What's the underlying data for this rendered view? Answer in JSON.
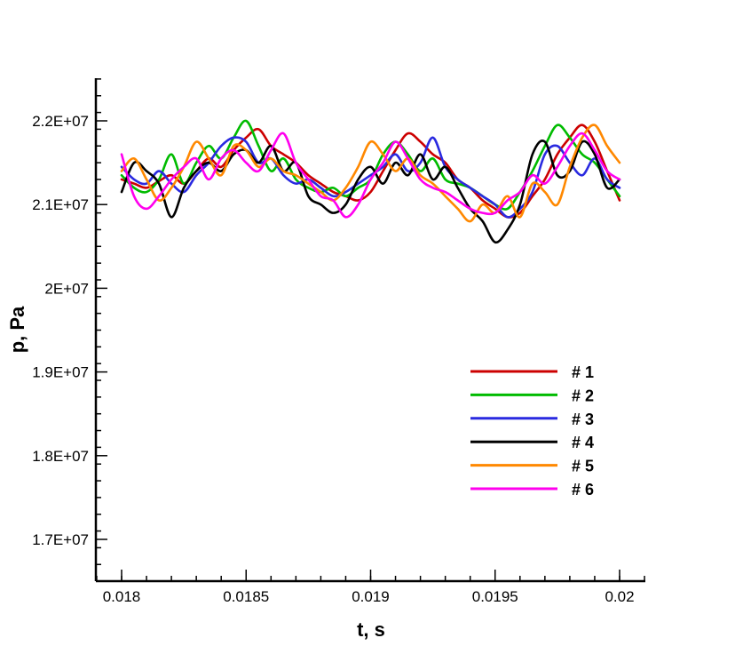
{
  "chart_data": {
    "type": "line",
    "title": "",
    "xlabel": "t, s",
    "ylabel": "p, Pa",
    "xlim": [
      0.0179,
      0.0201
    ],
    "ylim": [
      16500000,
      22500000
    ],
    "x_ticks": [
      0.018,
      0.0185,
      0.019,
      0.0195,
      0.02
    ],
    "x_tick_labels": [
      "0.018",
      "0.0185",
      "0.019",
      "0.0195",
      "0.02"
    ],
    "y_ticks": [
      17000000,
      18000000,
      19000000,
      20000000,
      21000000,
      22000000
    ],
    "y_tick_labels": [
      "1.7E+07",
      "1.8E+07",
      "1.9E+07",
      "2E+07",
      "2.1E+07",
      "2.2E+07"
    ],
    "y_minor_step": 200000,
    "x_minor_step": 0.0001,
    "grid": false,
    "legend_position": "right",
    "series": [
      {
        "name": "# 1",
        "color": "#cc0000",
        "x": [
          0.018,
          0.01805,
          0.0181,
          0.01815,
          0.0182,
          0.01825,
          0.0183,
          0.01835,
          0.0184,
          0.01845,
          0.0185,
          0.01855,
          0.0186,
          0.01865,
          0.0187,
          0.01875,
          0.0188,
          0.01885,
          0.0189,
          0.01895,
          0.019,
          0.01905,
          0.0191,
          0.01915,
          0.0192,
          0.01925,
          0.0193,
          0.01935,
          0.0194,
          0.01945,
          0.0195,
          0.01955,
          0.0196,
          0.01965,
          0.0197,
          0.01975,
          0.0198,
          0.01985,
          0.0199,
          0.01995,
          0.02
        ],
        "values": [
          21300000,
          21250000,
          21200000,
          21280000,
          21350000,
          21250000,
          21400000,
          21550000,
          21450000,
          21650000,
          21800000,
          21900000,
          21700000,
          21600000,
          21500000,
          21350000,
          21250000,
          21150000,
          21100000,
          21050000,
          21150000,
          21400000,
          21650000,
          21850000,
          21750000,
          21600000,
          21500000,
          21300000,
          21200000,
          21050000,
          20950000,
          20850000,
          20900000,
          21100000,
          21300000,
          21600000,
          21800000,
          21950000,
          21750000,
          21400000,
          21050000
        ]
      },
      {
        "name": "# 2",
        "color": "#00bb00",
        "x": [
          0.018,
          0.01805,
          0.0181,
          0.01815,
          0.0182,
          0.01825,
          0.0183,
          0.01835,
          0.0184,
          0.01845,
          0.0185,
          0.01855,
          0.0186,
          0.01865,
          0.0187,
          0.01875,
          0.0188,
          0.01885,
          0.0189,
          0.01895,
          0.019,
          0.01905,
          0.0191,
          0.01915,
          0.0192,
          0.01925,
          0.0193,
          0.01935,
          0.0194,
          0.01945,
          0.0195,
          0.01955,
          0.0196,
          0.01965,
          0.0197,
          0.01975,
          0.0198,
          0.01985,
          0.0199,
          0.01995,
          0.02
        ],
        "values": [
          21350000,
          21200000,
          21150000,
          21300000,
          21600000,
          21250000,
          21500000,
          21700000,
          21550000,
          21800000,
          22000000,
          21700000,
          21400000,
          21550000,
          21300000,
          21200000,
          21150000,
          21200000,
          21100000,
          21200000,
          21300000,
          21600000,
          21750000,
          21600000,
          21400000,
          21550000,
          21300000,
          21250000,
          21200000,
          21100000,
          21000000,
          20950000,
          21150000,
          21400000,
          21700000,
          21950000,
          21800000,
          21600000,
          21500000,
          21300000,
          21100000
        ]
      },
      {
        "name": "# 3",
        "color": "#2a2ae0",
        "x": [
          0.018,
          0.01805,
          0.0181,
          0.01815,
          0.0182,
          0.01825,
          0.0183,
          0.01835,
          0.0184,
          0.01845,
          0.0185,
          0.01855,
          0.0186,
          0.01865,
          0.0187,
          0.01875,
          0.0188,
          0.01885,
          0.0189,
          0.01895,
          0.019,
          0.01905,
          0.0191,
          0.01915,
          0.0192,
          0.01925,
          0.0193,
          0.01935,
          0.0194,
          0.01945,
          0.0195,
          0.01955,
          0.0196,
          0.01965,
          0.0197,
          0.01975,
          0.0198,
          0.01985,
          0.0199,
          0.01995,
          0.02
        ],
        "values": [
          21450000,
          21300000,
          21250000,
          21400000,
          21250000,
          21150000,
          21350000,
          21500000,
          21700000,
          21800000,
          21750000,
          21500000,
          21550000,
          21350000,
          21250000,
          21300000,
          21200000,
          21100000,
          21150000,
          21250000,
          21350000,
          21450000,
          21600000,
          21400000,
          21500000,
          21800000,
          21450000,
          21300000,
          21200000,
          21100000,
          21000000,
          20850000,
          20950000,
          21150000,
          21600000,
          21700000,
          21500000,
          21350000,
          21550000,
          21300000,
          21200000
        ]
      },
      {
        "name": "# 4",
        "color": "#000000",
        "x": [
          0.018,
          0.01805,
          0.0181,
          0.01815,
          0.0182,
          0.01825,
          0.0183,
          0.01835,
          0.0184,
          0.01845,
          0.0185,
          0.01855,
          0.0186,
          0.01865,
          0.0187,
          0.01875,
          0.0188,
          0.01885,
          0.0189,
          0.01895,
          0.019,
          0.01905,
          0.0191,
          0.01915,
          0.0192,
          0.01925,
          0.0193,
          0.01935,
          0.0194,
          0.01945,
          0.0195,
          0.01955,
          0.0196,
          0.01965,
          0.0197,
          0.01975,
          0.0198,
          0.01985,
          0.0199,
          0.01995,
          0.02
        ],
        "values": [
          21150000,
          21500000,
          21400000,
          21250000,
          20850000,
          21200000,
          21400000,
          21500000,
          21400000,
          21600000,
          21650000,
          21500000,
          21700000,
          21400000,
          21500000,
          21100000,
          21000000,
          20900000,
          21000000,
          21300000,
          21450000,
          21250000,
          21500000,
          21350000,
          21600000,
          21300000,
          21450000,
          21200000,
          20950000,
          20800000,
          20550000,
          20700000,
          21000000,
          21600000,
          21750000,
          21350000,
          21400000,
          21750000,
          21600000,
          21200000,
          21300000
        ]
      },
      {
        "name": "# 5",
        "color": "#ff8800",
        "x": [
          0.018,
          0.01805,
          0.0181,
          0.01815,
          0.0182,
          0.01825,
          0.0183,
          0.01835,
          0.0184,
          0.01845,
          0.0185,
          0.01855,
          0.0186,
          0.01865,
          0.0187,
          0.01875,
          0.0188,
          0.01885,
          0.0189,
          0.01895,
          0.019,
          0.01905,
          0.0191,
          0.01915,
          0.0192,
          0.01925,
          0.0193,
          0.01935,
          0.0194,
          0.01945,
          0.0195,
          0.01955,
          0.0196,
          0.01965,
          0.0197,
          0.01975,
          0.0198,
          0.01985,
          0.0199,
          0.01995,
          0.02
        ],
        "values": [
          21400000,
          21550000,
          21300000,
          21050000,
          21200000,
          21450000,
          21750000,
          21550000,
          21350000,
          21700000,
          21650000,
          21450000,
          21550000,
          21400000,
          21350000,
          21250000,
          21150000,
          21050000,
          21200000,
          21450000,
          21750000,
          21600000,
          21400000,
          21550000,
          21350000,
          21250000,
          21100000,
          20950000,
          20800000,
          21000000,
          20900000,
          21100000,
          20850000,
          21250000,
          21150000,
          21000000,
          21450000,
          21800000,
          21950000,
          21700000,
          21500000
        ]
      },
      {
        "name": "# 6",
        "color": "#ff00ee",
        "x": [
          0.018,
          0.01805,
          0.0181,
          0.01815,
          0.0182,
          0.01825,
          0.0183,
          0.01835,
          0.0184,
          0.01845,
          0.0185,
          0.01855,
          0.0186,
          0.01865,
          0.0187,
          0.01875,
          0.0188,
          0.01885,
          0.0189,
          0.01895,
          0.019,
          0.01905,
          0.0191,
          0.01915,
          0.0192,
          0.01925,
          0.0193,
          0.01935,
          0.0194,
          0.01945,
          0.0195,
          0.01955,
          0.0196,
          0.01965,
          0.0197,
          0.01975,
          0.0198,
          0.01985,
          0.0199,
          0.01995,
          0.02
        ],
        "values": [
          21600000,
          21100000,
          20950000,
          21100000,
          21300000,
          21450000,
          21550000,
          21300000,
          21550000,
          21650000,
          21500000,
          21400000,
          21650000,
          21850000,
          21500000,
          21300000,
          21100000,
          21050000,
          20850000,
          21000000,
          21300000,
          21500000,
          21750000,
          21550000,
          21300000,
          21200000,
          21150000,
          21050000,
          20950000,
          20900000,
          20900000,
          21050000,
          21150000,
          21350000,
          21250000,
          21450000,
          21700000,
          21850000,
          21650000,
          21400000,
          21300000
        ]
      }
    ]
  }
}
